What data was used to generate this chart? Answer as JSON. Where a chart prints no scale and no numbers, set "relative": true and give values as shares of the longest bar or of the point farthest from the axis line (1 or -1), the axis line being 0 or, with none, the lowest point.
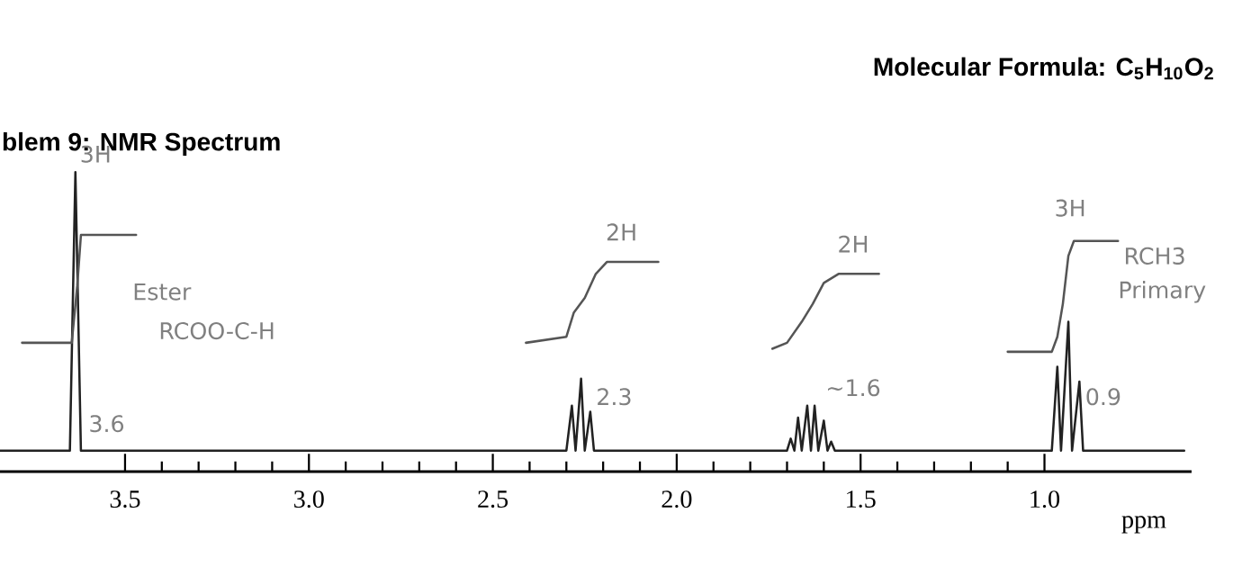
{
  "chart_data": {
    "type": "line",
    "title": "blem 9: NMR Spectrum",
    "subtitle": "Molecular Formula: C$_{5}$H$_{10}$O$_{2}$",
    "xlabel": "ppm",
    "relative": true,
    "xlim": [
      3.84,
      0.6
    ],
    "xticks": [
      {
        "value": 3.5,
        "label": "3.5"
      },
      {
        "value": 3.0,
        "label": "3.0"
      },
      {
        "value": 2.5,
        "label": "2.5"
      },
      {
        "value": 2.0,
        "label": "2.0"
      },
      {
        "value": 1.5,
        "label": "1.5"
      },
      {
        "value": 1.0,
        "label": "1.0"
      }
    ],
    "series": [
      {
        "color": "#222222",
        "x": [
          3.84,
          3.65,
          3.635,
          3.62,
          2.3,
          2.285,
          2.275,
          2.26,
          2.25,
          2.235,
          2.225,
          1.7,
          1.69,
          1.68,
          1.67,
          1.66,
          1.645,
          1.635,
          1.625,
          1.615,
          1.6,
          1.59,
          1.58,
          1.57,
          0.98,
          0.965,
          0.955,
          0.935,
          0.925,
          0.905,
          0.895,
          0.62
        ],
        "values": [
          0.07,
          0.07,
          1.0,
          0.07,
          0.07,
          0.22,
          0.07,
          0.31,
          0.07,
          0.2,
          0.07,
          0.07,
          0.11,
          0.07,
          0.18,
          0.07,
          0.22,
          0.07,
          0.22,
          0.07,
          0.17,
          0.07,
          0.1,
          0.07,
          0.07,
          0.35,
          0.07,
          0.5,
          0.07,
          0.3,
          0.07,
          0.07
        ]
      },
      {
        "color": "#555555",
        "x": [
          3.78,
          3.645,
          3.63,
          3.62,
          3.47
        ],
        "values": [
          0.43,
          0.43,
          0.62,
          0.79,
          0.79
        ]
      },
      {
        "color": "#555555",
        "x": [
          2.41,
          2.3,
          2.28,
          2.25,
          2.22,
          2.19,
          2.05
        ],
        "values": [
          0.43,
          0.45,
          0.53,
          0.58,
          0.66,
          0.7,
          0.7
        ]
      },
      {
        "color": "#555555",
        "x": [
          1.74,
          1.7,
          1.66,
          1.63,
          1.6,
          1.56,
          1.45
        ],
        "values": [
          0.41,
          0.43,
          0.5,
          0.56,
          0.63,
          0.66,
          0.66
        ]
      },
      {
        "color": "#555555",
        "x": [
          1.1,
          0.98,
          0.965,
          0.95,
          0.935,
          0.92,
          0.8
        ],
        "values": [
          0.4,
          0.4,
          0.45,
          0.56,
          0.72,
          0.77,
          0.77
        ]
      }
    ],
    "annotations": [
      "3H",
      "Ester",
      "RCOO-C-H",
      "3.6",
      "2H",
      "2.3",
      "2H",
      "~1.6",
      "3H",
      "0.9",
      "RCH3",
      "Primary"
    ]
  }
}
